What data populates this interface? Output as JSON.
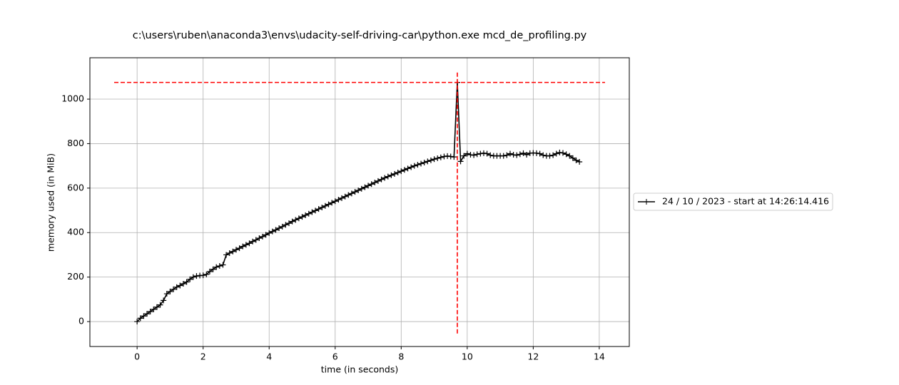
{
  "chart_data": {
    "type": "line",
    "title": "c:\\users\\ruben\\anaconda3\\envs\\udacity-self-driving-car\\python.exe mcd_de_profiling.py",
    "xlabel": "time (in seconds)",
    "ylabel": "memory used (in MiB)",
    "x": [
      0,
      0.1,
      0.2,
      0.3,
      0.4,
      0.5,
      0.6,
      0.7,
      0.8,
      0.9,
      1.0,
      1.1,
      1.2,
      1.3,
      1.4,
      1.5,
      1.6,
      1.7,
      1.8,
      1.9,
      2.0,
      2.1,
      2.2,
      2.3,
      2.4,
      2.5,
      2.6,
      2.7,
      2.8,
      2.9,
      3.0,
      3.1,
      3.2,
      3.3,
      3.4,
      3.5,
      3.6,
      3.7,
      3.8,
      3.9,
      4.0,
      4.1,
      4.2,
      4.3,
      4.4,
      4.5,
      4.6,
      4.7,
      4.8,
      4.9,
      5.0,
      5.1,
      5.2,
      5.3,
      5.4,
      5.5,
      5.6,
      5.7,
      5.8,
      5.9,
      6.0,
      6.1,
      6.2,
      6.3,
      6.4,
      6.5,
      6.6,
      6.7,
      6.8,
      6.9,
      7.0,
      7.1,
      7.2,
      7.3,
      7.4,
      7.5,
      7.6,
      7.7,
      7.8,
      7.9,
      8.0,
      8.1,
      8.2,
      8.3,
      8.4,
      8.5,
      8.6,
      8.7,
      8.8,
      8.9,
      9.0,
      9.1,
      9.2,
      9.3,
      9.4,
      9.5,
      9.6,
      9.7,
      9.8,
      9.9,
      10.0,
      10.1,
      10.2,
      10.3,
      10.4,
      10.5,
      10.6,
      10.7,
      10.8,
      10.9,
      11.0,
      11.1,
      11.2,
      11.3,
      11.4,
      11.5,
      11.6,
      11.7,
      11.8,
      11.9,
      12.0,
      12.1,
      12.2,
      12.3,
      12.4,
      12.5,
      12.6,
      12.7,
      12.8,
      12.9,
      13.0,
      13.1,
      13.2,
      13.3,
      13.4
    ],
    "series": [
      {
        "name": "24 / 10 / 2023 - start at 14:26:14.416",
        "color": "#000000",
        "values": [
          0,
          15,
          25,
          35,
          45,
          55,
          65,
          75,
          95,
          125,
          135,
          145,
          155,
          162,
          170,
          178,
          190,
          200,
          205,
          207,
          208,
          212,
          225,
          235,
          245,
          250,
          255,
          300,
          308,
          315,
          323,
          330,
          338,
          345,
          352,
          360,
          367,
          375,
          382,
          390,
          398,
          405,
          412,
          420,
          427,
          435,
          442,
          450,
          457,
          464,
          471,
          478,
          485,
          492,
          499,
          506,
          513,
          520,
          527,
          534,
          541,
          548,
          555,
          562,
          569,
          576,
          583,
          590,
          597,
          604,
          611,
          618,
          625,
          632,
          639,
          646,
          652,
          658,
          664,
          670,
          676,
          682,
          688,
          694,
          700,
          705,
          710,
          715,
          720,
          725,
          730,
          734,
          738,
          742,
          744,
          742,
          740,
          1075,
          720,
          745,
          755,
          750,
          748,
          752,
          755,
          757,
          755,
          748,
          745,
          745,
          745,
          745,
          748,
          755,
          750,
          748,
          752,
          757,
          750,
          757,
          758,
          757,
          755,
          748,
          745,
          745,
          748,
          755,
          760,
          758,
          752,
          745,
          735,
          725,
          718
        ]
      }
    ],
    "peak": {
      "time": 9.7,
      "memory": 1075,
      "color": "#ff0000"
    },
    "xlim": [
      -1.43,
      14.91
    ],
    "ylim": [
      -112,
      1186
    ],
    "xticks": [
      0,
      2,
      4,
      6,
      8,
      10,
      12,
      14
    ],
    "yticks": [
      0,
      200,
      400,
      600,
      800,
      1000
    ],
    "grid": true,
    "legend": "right"
  }
}
